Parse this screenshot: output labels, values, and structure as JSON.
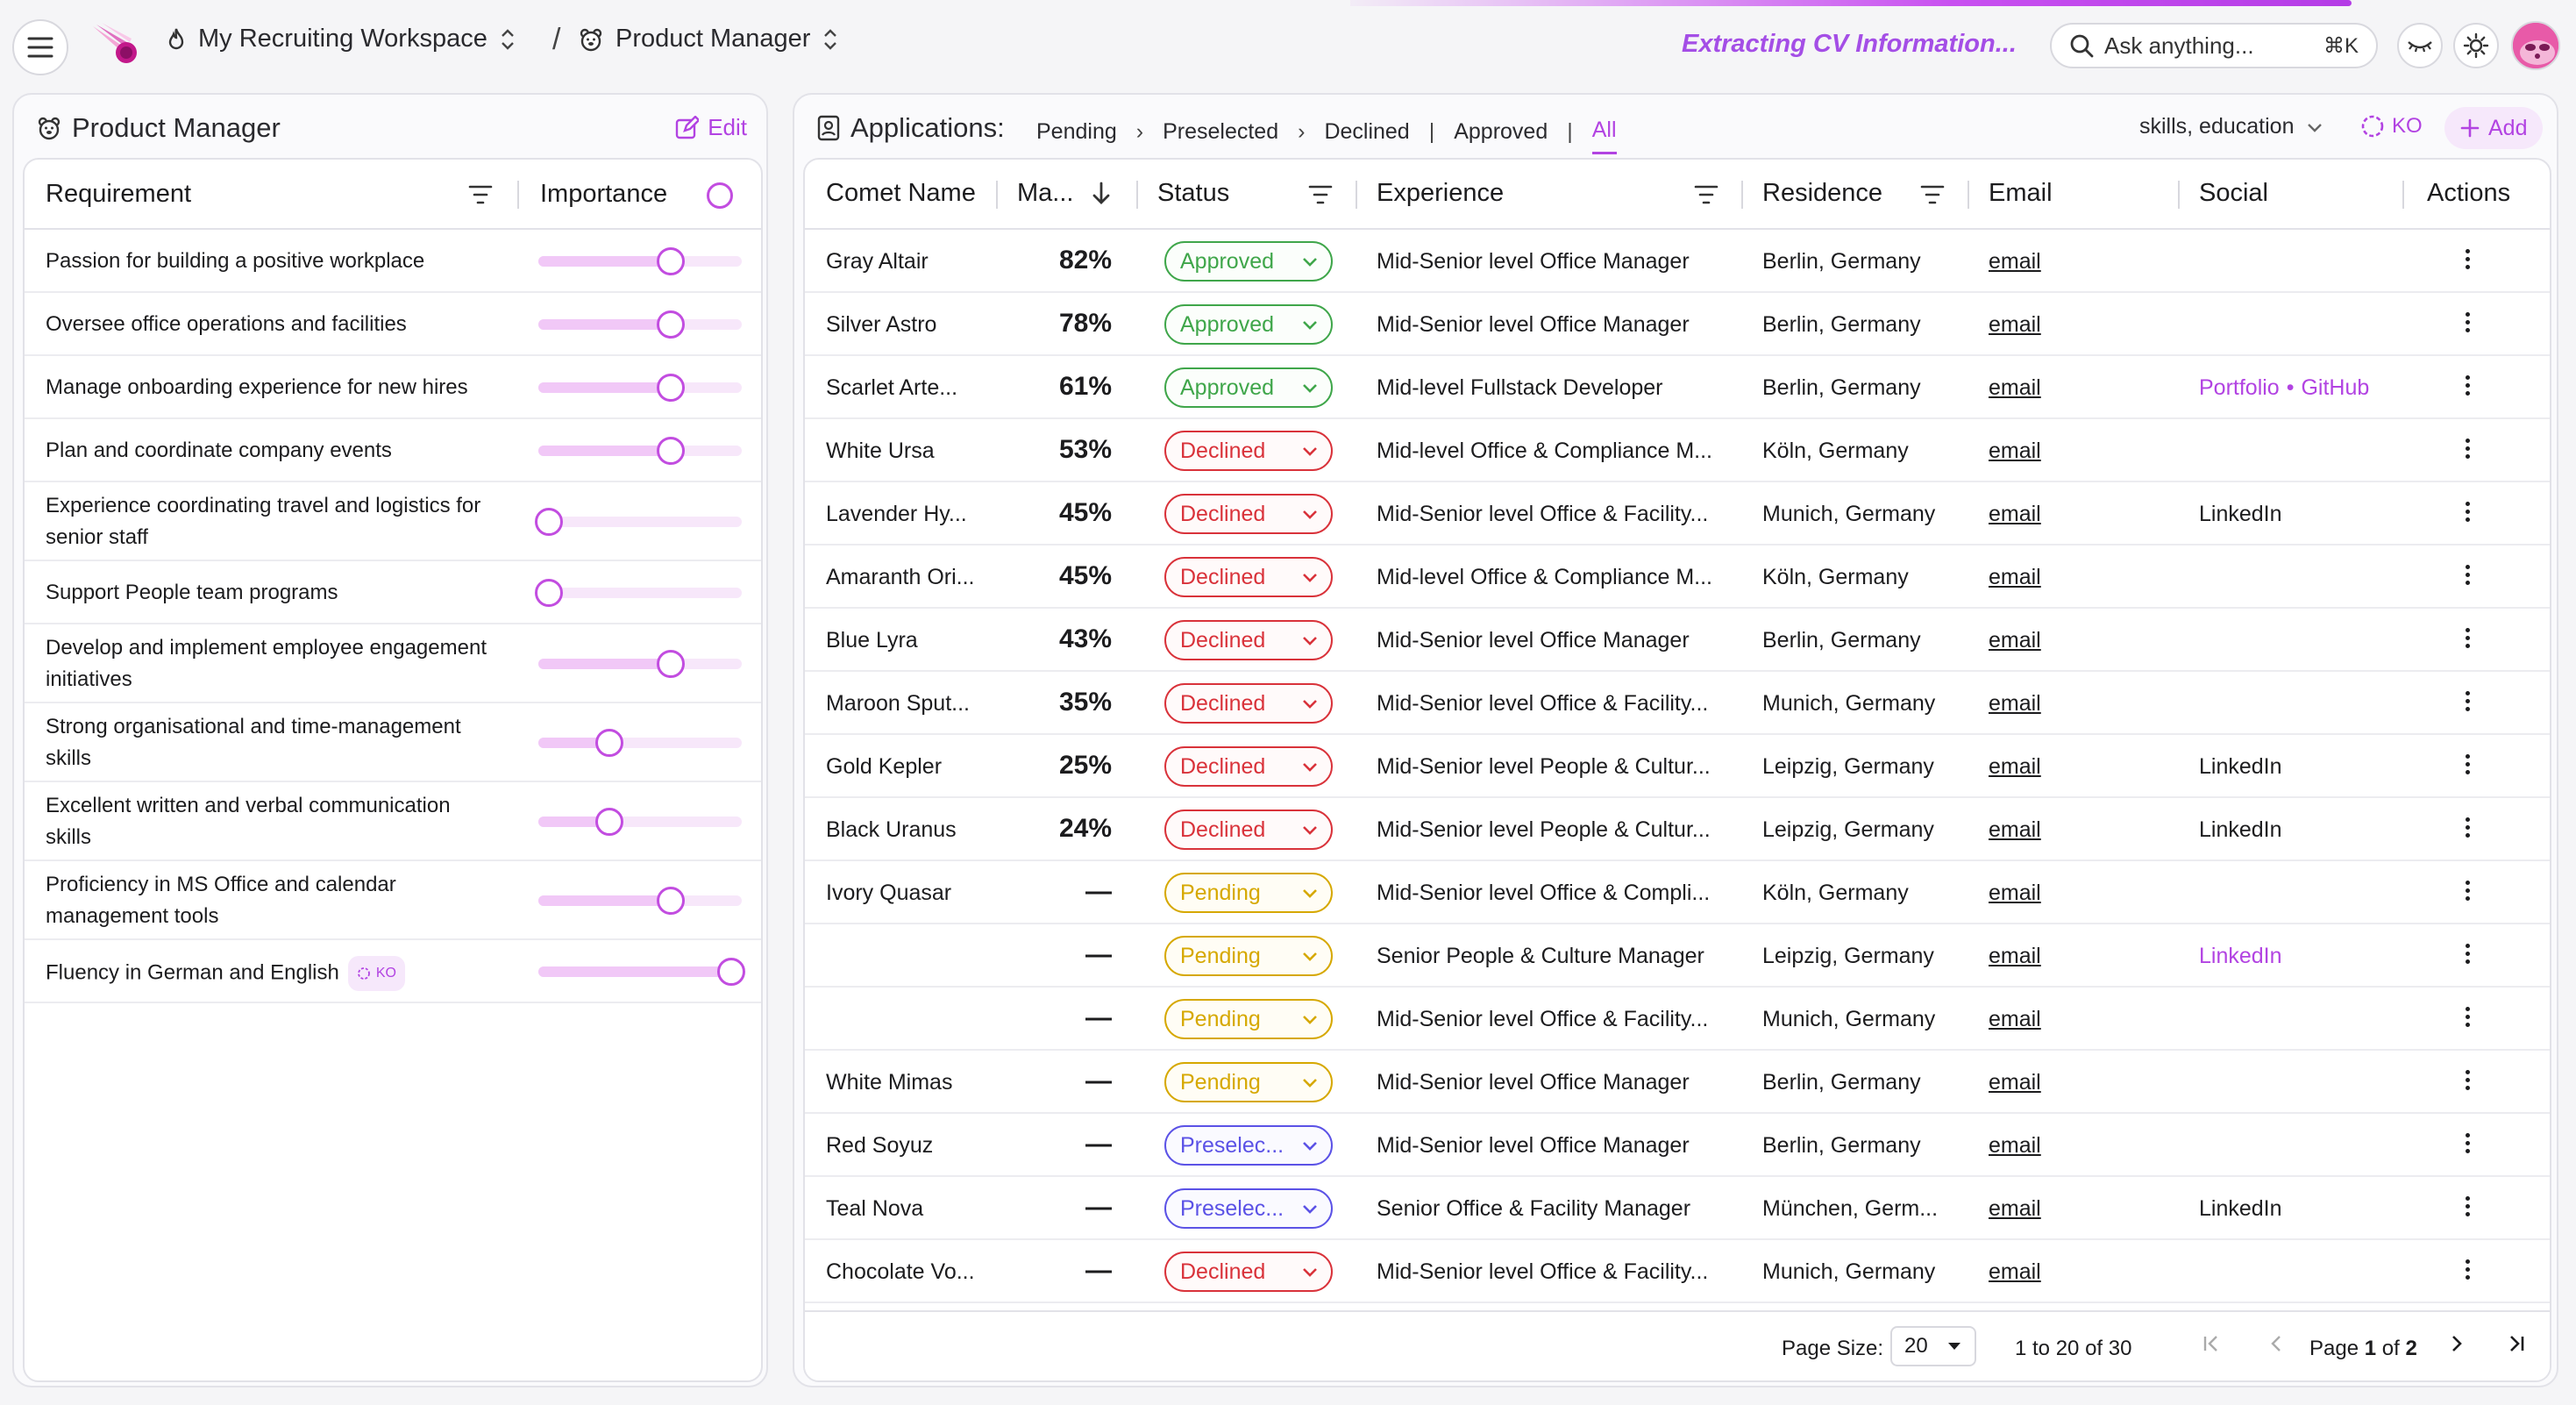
{
  "header": {
    "workspace": "My Recruiting Workspace",
    "separator": "/",
    "job": "Product Manager",
    "status_text": "Extracting CV Information...",
    "search_placeholder": "Ask anything...",
    "search_shortcut": "⌘K",
    "progress_fraction": 0.86
  },
  "left": {
    "title": "Product Manager",
    "edit_label": "Edit",
    "col_requirement": "Requirement",
    "col_importance": "Importance",
    "requirements": [
      {
        "label": "Passion for building a positive workplace",
        "importance": 0.65,
        "ko": false
      },
      {
        "label": "Oversee office operations and facilities",
        "importance": 0.65,
        "ko": false
      },
      {
        "label": "Manage onboarding experience for new hires",
        "importance": 0.65,
        "ko": false
      },
      {
        "label": "Plan and coordinate company events",
        "importance": 0.65,
        "ko": false
      },
      {
        "label": "Experience coordinating travel and logistics for senior staff",
        "importance": 0.05,
        "ko": false
      },
      {
        "label": "Support People team programs",
        "importance": 0.05,
        "ko": false
      },
      {
        "label": "Develop and implement employee engagement initiatives",
        "importance": 0.65,
        "ko": false
      },
      {
        "label": "Strong organisational and time-management skills",
        "importance": 0.35,
        "ko": false
      },
      {
        "label": "Excellent written and verbal communication skills",
        "importance": 0.35,
        "ko": false
      },
      {
        "label": "Proficiency in MS Office and calendar management tools",
        "importance": 0.65,
        "ko": false
      },
      {
        "label": "Fluency in German and English",
        "importance": 0.95,
        "ko": true,
        "ko_label": "KO"
      }
    ]
  },
  "right": {
    "title": "Applications:",
    "tabs": [
      "Pending",
      "Preselected",
      "Declined",
      "Approved",
      "All"
    ],
    "tab_separators": [
      "›",
      "›",
      "|",
      "|"
    ],
    "active_tab": "All",
    "skills_filter": "skills, education",
    "ko_label": "KO",
    "add_label": "Add",
    "columns": {
      "name": "Comet Name",
      "match": "Ma...",
      "status": "Status",
      "experience": "Experience",
      "residence": "Residence",
      "email": "Email",
      "social": "Social",
      "actions": "Actions"
    },
    "rows": [
      {
        "name": "Gray Altair",
        "match": "82%",
        "status": "Approved",
        "experience": "Mid-Senior level Office Manager",
        "residence": "Berlin, Germany",
        "email": "email",
        "social": [],
        "social_style": ""
      },
      {
        "name": "Silver Astro",
        "match": "78%",
        "status": "Approved",
        "experience": "Mid-Senior level Office Manager",
        "residence": "Berlin, Germany",
        "email": "email",
        "social": [],
        "social_style": ""
      },
      {
        "name": "Scarlet Arte...",
        "match": "61%",
        "status": "Approved",
        "experience": "Mid-level Fullstack Developer",
        "residence": "Berlin, Germany",
        "email": "email",
        "social": [
          "Portfolio",
          "GitHub"
        ],
        "social_style": "pink"
      },
      {
        "name": "White Ursa",
        "match": "53%",
        "status": "Declined",
        "experience": "Mid-level Office & Compliance M...",
        "residence": "Köln, Germany",
        "email": "email",
        "social": [],
        "social_style": ""
      },
      {
        "name": "Lavender Hy...",
        "match": "45%",
        "status": "Declined",
        "experience": "Mid-Senior level Office & Facility...",
        "residence": "Munich, Germany",
        "email": "email",
        "social": [
          "LinkedIn"
        ],
        "social_style": "plain"
      },
      {
        "name": "Amaranth Ori...",
        "match": "45%",
        "status": "Declined",
        "experience": "Mid-level Office & Compliance M...",
        "residence": "Köln, Germany",
        "email": "email",
        "social": [],
        "social_style": ""
      },
      {
        "name": "Blue Lyra",
        "match": "43%",
        "status": "Declined",
        "experience": "Mid-Senior level Office Manager",
        "residence": "Berlin, Germany",
        "email": "email",
        "social": [],
        "social_style": ""
      },
      {
        "name": "Maroon Sput...",
        "match": "35%",
        "status": "Declined",
        "experience": "Mid-Senior level Office & Facility...",
        "residence": "Munich, Germany",
        "email": "email",
        "social": [],
        "social_style": ""
      },
      {
        "name": "Gold Kepler",
        "match": "25%",
        "status": "Declined",
        "experience": "Mid-Senior level People & Cultur...",
        "residence": "Leipzig, Germany",
        "email": "email",
        "social": [
          "LinkedIn"
        ],
        "social_style": "plain"
      },
      {
        "name": "Black Uranus",
        "match": "24%",
        "status": "Declined",
        "experience": "Mid-Senior level People & Cultur...",
        "residence": "Leipzig, Germany",
        "email": "email",
        "social": [
          "LinkedIn"
        ],
        "social_style": "plain"
      },
      {
        "name": "Ivory Quasar",
        "match": "—",
        "status": "Pending",
        "experience": "Mid-Senior level Office & Compli...",
        "residence": "Köln, Germany",
        "email": "email",
        "social": [],
        "social_style": ""
      },
      {
        "name": "",
        "match": "—",
        "status": "Pending",
        "experience": "Senior People & Culture Manager",
        "residence": "Leipzig, Germany",
        "email": "email",
        "social": [
          "LinkedIn"
        ],
        "social_style": "pink"
      },
      {
        "name": "",
        "match": "—",
        "status": "Pending",
        "experience": "Mid-Senior level Office & Facility...",
        "residence": "Munich, Germany",
        "email": "email",
        "social": [],
        "social_style": ""
      },
      {
        "name": "White Mimas",
        "match": "—",
        "status": "Pending",
        "experience": "Mid-Senior level Office Manager",
        "residence": "Berlin, Germany",
        "email": "email",
        "social": [],
        "social_style": ""
      },
      {
        "name": "Red Soyuz",
        "match": "—",
        "status": "Preselec...",
        "experience": "Mid-Senior level Office Manager",
        "residence": "Berlin, Germany",
        "email": "email",
        "social": [],
        "social_style": ""
      },
      {
        "name": "Teal Nova",
        "match": "—",
        "status": "Preselec...",
        "experience": "Senior Office & Facility Manager",
        "residence": "München, Germ...",
        "email": "email",
        "social": [
          "LinkedIn"
        ],
        "social_style": "plain"
      },
      {
        "name": "Chocolate Vo...",
        "match": "—",
        "status": "Declined",
        "experience": "Mid-Senior level Office & Facility...",
        "residence": "Munich, Germany",
        "email": "email",
        "social": [],
        "social_style": ""
      }
    ],
    "pager": {
      "page_size_label": "Page Size:",
      "page_size": "20",
      "range": "1 to 20 of 30",
      "page_label": "Page",
      "page_current": "1",
      "page_of": "of",
      "page_total": "2"
    }
  },
  "colors": {
    "accent": "#b243e2",
    "approved": "#3fa64a",
    "declined": "#d9323a",
    "pending": "#d6a800",
    "preselected": "#5b52e6"
  }
}
